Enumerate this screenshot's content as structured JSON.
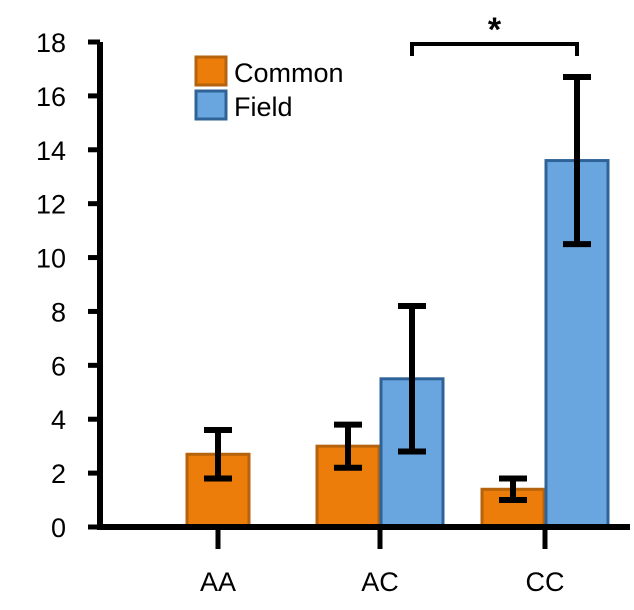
{
  "chart_data": {
    "type": "bar",
    "categories": [
      "AA",
      "AC",
      "CC"
    ],
    "ylim": [
      0,
      18
    ],
    "yticks": [
      0,
      2,
      4,
      6,
      8,
      10,
      12,
      14,
      16,
      18
    ],
    "grid": false,
    "legend_position": "top-left",
    "series": [
      {
        "name": "Common",
        "color": "#ED7D0A",
        "edge_color": "#B5630C",
        "values": [
          2.7,
          3.0,
          1.4
        ],
        "error": [
          0.9,
          0.8,
          0.4
        ]
      },
      {
        "name": "Field",
        "color": "#69A6E0",
        "edge_color": "#2F6397",
        "values": [
          null,
          5.5,
          13.6
        ],
        "error": [
          null,
          2.7,
          3.1
        ]
      }
    ],
    "significance": {
      "label": "*",
      "between": [
        "AC",
        "CC"
      ]
    }
  }
}
